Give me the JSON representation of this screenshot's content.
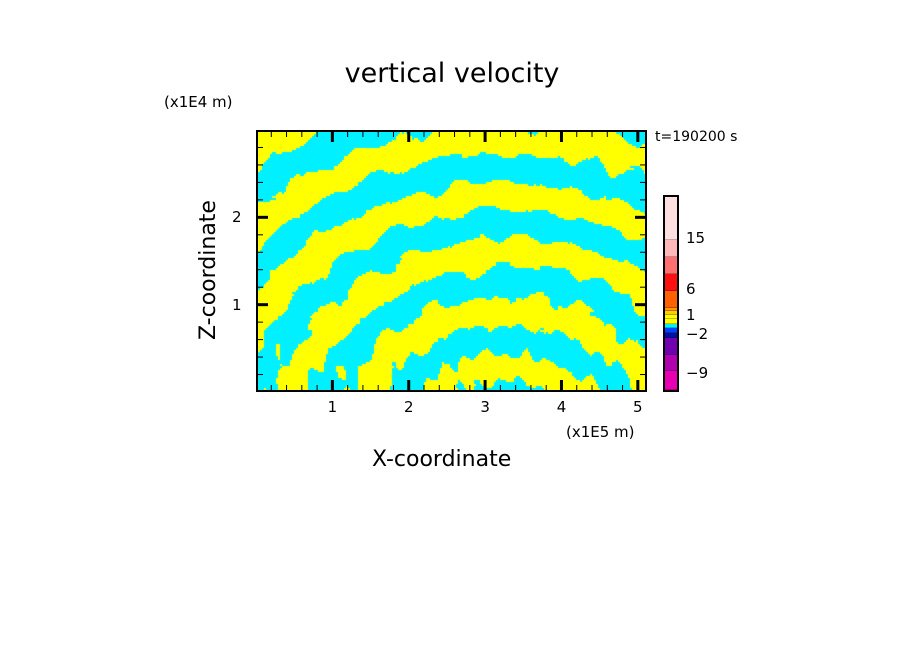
{
  "chart_data": {
    "type": "heatmap",
    "title": "vertical velocity",
    "xlabel": "X-coordinate",
    "ylabel": "Z-coordinate",
    "x_unit": "(x1E5 m)",
    "z_unit": "(x1E4 m)",
    "time_label": "t=190200 s",
    "xlim": [
      0,
      5.12
    ],
    "ylim": [
      0,
      3.0
    ],
    "x_ticks": [
      "1",
      "2",
      "3",
      "4",
      "5"
    ],
    "x_tick_values": [
      1,
      2,
      3,
      4,
      5
    ],
    "y_ticks": [
      "1",
      "2"
    ],
    "y_tick_values": [
      1,
      2
    ],
    "dominant_colors": {
      "positive_small": "#ffff00",
      "negative_small": "#00f0ff"
    },
    "colorbar": {
      "labels": [
        "15",
        "6",
        "1",
        "−2",
        "−9"
      ],
      "colors_top_to_bottom": [
        "#ffe0e0",
        "#ffb8b8",
        "#ff7070",
        "#ff1010",
        "#ff6000",
        "#ff9900",
        "#ffd000",
        "#ffff00",
        "#ffff00",
        "#00f0ff",
        "#0040ff",
        "#0010a0",
        "#7000b0",
        "#b000b0",
        "#e800b0"
      ]
    }
  }
}
